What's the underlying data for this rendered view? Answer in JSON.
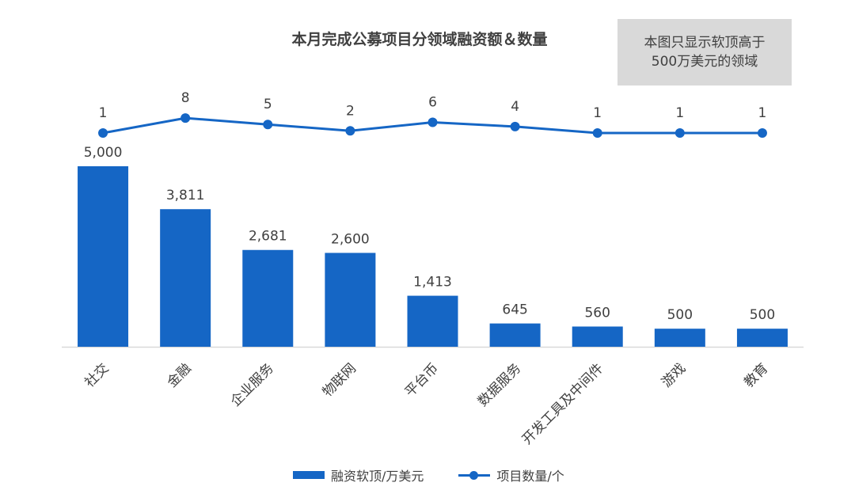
{
  "title": "本月完成公募项目分领域融资额＆数量",
  "note": "本图只显示软顶高于\n500万美元的领域",
  "colors": {
    "primary": "#1566c5",
    "text": "#404040",
    "note_bg": "#d9d9d9",
    "axis": "#d9d9d9"
  },
  "chart_data": {
    "type": "bar",
    "categories": [
      "社交",
      "金融",
      "企业服务",
      "物联网",
      "平台币",
      "数据服务",
      "开发工具及中间件",
      "游戏",
      "教育"
    ],
    "series": [
      {
        "name": "融资软顶/万美元",
        "type": "bar",
        "values": [
          5000,
          3811,
          2681,
          2600,
          1413,
          645,
          560,
          500,
          500
        ],
        "value_labels": [
          "5,000",
          "3,811",
          "2,681",
          "2,600",
          "1,413",
          "645",
          "560",
          "500",
          "500"
        ]
      },
      {
        "name": "项目数量/个",
        "type": "line",
        "values": [
          1,
          8,
          5,
          2,
          6,
          4,
          1,
          1,
          1
        ],
        "value_labels": [
          "1",
          "8",
          "5",
          "2",
          "6",
          "4",
          "1",
          "1",
          "1"
        ]
      }
    ],
    "legend": "bottom",
    "grid": false
  }
}
